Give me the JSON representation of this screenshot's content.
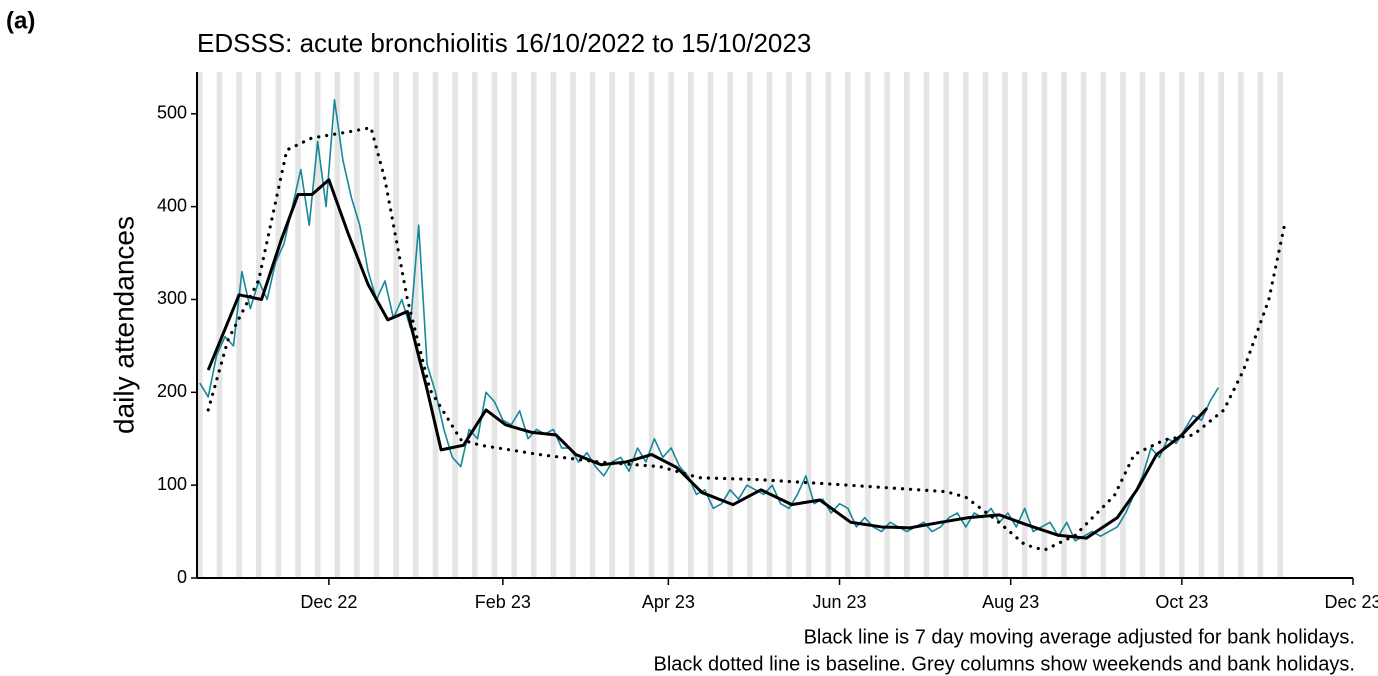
{
  "chart_data": {
    "type": "line",
    "panel_label": "(a)",
    "title": "EDSSS: acute bronchiolitis 16/10/2022 to 15/10/2023",
    "y_label": "daily attendances",
    "notes": [
      "Black line is 7 day moving average adjusted for bank holidays.",
      "Black dotted line is baseline. Grey columns show weekends and bank holidays."
    ],
    "xlim": [
      "2022-10-15",
      "2023-12-01"
    ],
    "xticks": [
      {
        "value": "2022-12-01",
        "label": "Dec 22"
      },
      {
        "value": "2023-02-01",
        "label": "Feb 23"
      },
      {
        "value": "2023-04-01",
        "label": "Apr 23"
      },
      {
        "value": "2023-06-01",
        "label": "Jun 23"
      },
      {
        "value": "2023-08-01",
        "label": "Aug 23"
      },
      {
        "value": "2023-10-01",
        "label": "Oct 23"
      },
      {
        "value": "2023-12-01",
        "label": "Dec 23"
      }
    ],
    "ylim": [
      0,
      545
    ],
    "yticks": [
      0,
      100,
      200,
      300,
      400,
      500
    ],
    "weekend_color": "#e5e5e5",
    "series": [
      {
        "color": "#17879b",
        "style": "solid",
        "width": 1.6,
        "x": [
          "2022-10-16",
          "2022-10-19",
          "2022-10-22",
          "2022-10-25",
          "2022-10-28",
          "2022-10-31",
          "2022-11-03",
          "2022-11-06",
          "2022-11-09",
          "2022-11-12",
          "2022-11-15",
          "2022-11-18",
          "2022-11-21",
          "2022-11-24",
          "2022-11-27",
          "2022-11-30",
          "2022-12-03",
          "2022-12-06",
          "2022-12-09",
          "2022-12-12",
          "2022-12-15",
          "2022-12-18",
          "2022-12-21",
          "2022-12-24",
          "2022-12-27",
          "2022-12-30",
          "2023-01-02",
          "2023-01-05",
          "2023-01-08",
          "2023-01-11",
          "2023-01-14",
          "2023-01-17",
          "2023-01-20",
          "2023-01-23",
          "2023-01-26",
          "2023-01-29",
          "2023-02-01",
          "2023-02-04",
          "2023-02-07",
          "2023-02-10",
          "2023-02-13",
          "2023-02-16",
          "2023-02-19",
          "2023-02-22",
          "2023-02-25",
          "2023-02-28",
          "2023-03-03",
          "2023-03-06",
          "2023-03-09",
          "2023-03-12",
          "2023-03-15",
          "2023-03-18",
          "2023-03-21",
          "2023-03-24",
          "2023-03-27",
          "2023-03-30",
          "2023-04-02",
          "2023-04-05",
          "2023-04-08",
          "2023-04-11",
          "2023-04-14",
          "2023-04-17",
          "2023-04-20",
          "2023-04-23",
          "2023-04-26",
          "2023-04-29",
          "2023-05-02",
          "2023-05-05",
          "2023-05-08",
          "2023-05-11",
          "2023-05-14",
          "2023-05-17",
          "2023-05-20",
          "2023-05-23",
          "2023-05-26",
          "2023-05-29",
          "2023-06-01",
          "2023-06-04",
          "2023-06-07",
          "2023-06-10",
          "2023-06-13",
          "2023-06-16",
          "2023-06-19",
          "2023-06-22",
          "2023-06-25",
          "2023-06-28",
          "2023-07-01",
          "2023-07-04",
          "2023-07-07",
          "2023-07-10",
          "2023-07-13",
          "2023-07-16",
          "2023-07-19",
          "2023-07-22",
          "2023-07-25",
          "2023-07-28",
          "2023-07-31",
          "2023-08-03",
          "2023-08-06",
          "2023-08-09",
          "2023-08-12",
          "2023-08-15",
          "2023-08-18",
          "2023-08-21",
          "2023-08-24",
          "2023-08-27",
          "2023-08-30",
          "2023-09-02",
          "2023-09-05",
          "2023-09-08",
          "2023-09-11",
          "2023-09-14",
          "2023-09-17",
          "2023-09-20",
          "2023-09-23",
          "2023-09-26",
          "2023-09-29",
          "2023-10-02",
          "2023-10-05",
          "2023-10-08",
          "2023-10-11",
          "2023-10-14"
        ],
        "values": [
          210,
          195,
          240,
          260,
          250,
          330,
          290,
          320,
          300,
          340,
          360,
          400,
          440,
          380,
          470,
          400,
          515,
          450,
          410,
          380,
          330,
          300,
          320,
          280,
          300,
          270,
          380,
          230,
          200,
          160,
          130,
          120,
          160,
          150,
          200,
          190,
          170,
          165,
          180,
          150,
          160,
          155,
          160,
          140,
          140,
          125,
          135,
          120,
          110,
          125,
          130,
          115,
          140,
          125,
          150,
          130,
          140,
          120,
          110,
          90,
          95,
          75,
          80,
          95,
          85,
          100,
          95,
          90,
          100,
          80,
          75,
          90,
          110,
          80,
          85,
          70,
          80,
          75,
          55,
          65,
          55,
          50,
          60,
          55,
          50,
          55,
          60,
          50,
          55,
          65,
          70,
          55,
          70,
          65,
          75,
          60,
          70,
          55,
          75,
          50,
          55,
          60,
          45,
          60,
          40,
          45,
          50,
          45,
          50,
          55,
          70,
          90,
          110,
          140,
          130,
          150,
          145,
          160,
          175,
          170,
          190,
          205
        ]
      },
      {
        "color": "#000000",
        "style": "solid",
        "width": 3,
        "x": [
          "2022-10-19",
          "2022-10-30",
          "2022-11-07",
          "2022-11-14",
          "2022-11-20",
          "2022-11-25",
          "2022-12-01",
          "2022-12-08",
          "2022-12-15",
          "2022-12-22",
          "2022-12-29",
          "2023-01-05",
          "2023-01-10",
          "2023-01-18",
          "2023-01-26",
          "2023-02-02",
          "2023-02-11",
          "2023-02-20",
          "2023-02-27",
          "2023-03-08",
          "2023-03-17",
          "2023-03-26",
          "2023-04-04",
          "2023-04-13",
          "2023-04-24",
          "2023-05-04",
          "2023-05-15",
          "2023-05-25",
          "2023-06-05",
          "2023-06-16",
          "2023-06-26",
          "2023-07-07",
          "2023-07-17",
          "2023-07-28",
          "2023-08-07",
          "2023-08-18",
          "2023-08-28",
          "2023-09-08",
          "2023-09-15",
          "2023-09-22",
          "2023-10-01",
          "2023-10-10"
        ],
        "values": [
          224,
          305,
          300,
          364,
          413,
          413,
          429,
          370,
          316,
          278,
          287,
          203,
          138,
          143,
          181,
          165,
          157,
          154,
          133,
          122,
          125,
          133,
          119,
          92,
          79,
          95,
          79,
          84,
          60,
          55,
          54,
          60,
          65,
          68,
          57,
          46,
          43,
          65,
          95,
          133,
          154,
          183
        ]
      },
      {
        "color": "#000000",
        "style": "dotted",
        "width": 3.2,
        "x": [
          "2022-10-19",
          "2022-10-26",
          "2022-11-06",
          "2022-11-16",
          "2022-11-25",
          "2022-12-07",
          "2022-12-16",
          "2022-12-21",
          "2022-12-29",
          "2023-01-06",
          "2023-01-17",
          "2023-01-24",
          "2023-02-14",
          "2023-03-07",
          "2023-03-29",
          "2023-04-12",
          "2023-05-03",
          "2023-06-04",
          "2023-07-09",
          "2023-07-16",
          "2023-07-27",
          "2023-08-06",
          "2023-08-13",
          "2023-08-24",
          "2023-09-07",
          "2023-09-14",
          "2023-09-25",
          "2023-10-05",
          "2023-10-16",
          "2023-10-23",
          "2023-11-01",
          "2023-11-07"
        ],
        "values": [
          181,
          256,
          321,
          461,
          474,
          480,
          485,
          429,
          300,
          203,
          149,
          143,
          133,
          125,
          120,
          108,
          106,
          100,
          93,
          87,
          62,
          36,
          30,
          46,
          89,
          133,
          149,
          154,
          181,
          224,
          300,
          386
        ]
      }
    ]
  }
}
